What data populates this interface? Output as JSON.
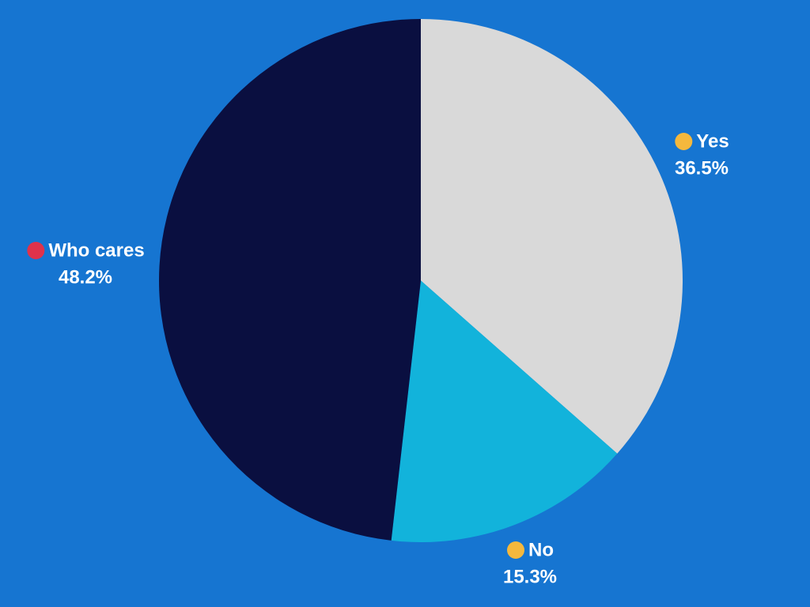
{
  "chart_data": {
    "type": "pie",
    "categories": [
      "Yes",
      "No",
      "Who cares"
    ],
    "values": [
      36.5,
      15.3,
      48.2
    ],
    "value_labels": [
      "36.5%",
      "15.3%",
      "48.2%"
    ],
    "colors": [
      "#d9d9d9",
      "#12b3db",
      "#0a0f40"
    ]
  }
}
